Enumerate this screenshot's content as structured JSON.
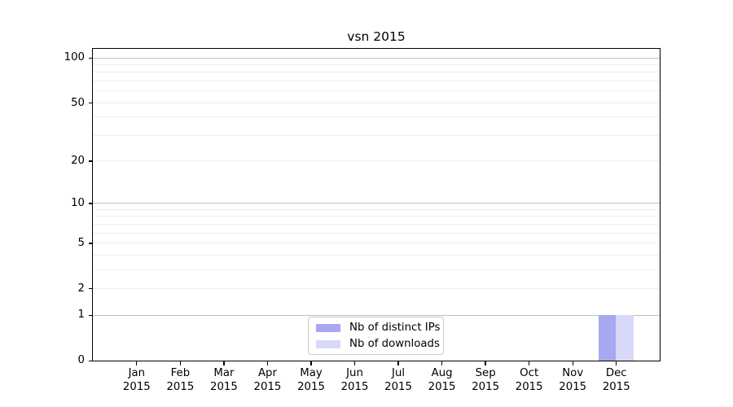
{
  "chart_data": {
    "type": "bar",
    "title": "vsn 2015",
    "categories": [
      "Jan 2015",
      "Feb 2015",
      "Mar 2015",
      "Apr 2015",
      "May 2015",
      "Jun 2015",
      "Jul 2015",
      "Aug 2015",
      "Sep 2015",
      "Oct 2015",
      "Nov 2015",
      "Dec 2015"
    ],
    "series": [
      {
        "name": "Nb of distinct IPs",
        "color": "#a8a8f0",
        "values": [
          0,
          0,
          0,
          0,
          0,
          0,
          0,
          0,
          0,
          0,
          0,
          1
        ]
      },
      {
        "name": "Nb of downloads",
        "color": "#d8d8f8",
        "values": [
          0,
          0,
          0,
          0,
          0,
          0,
          0,
          0,
          0,
          0,
          0,
          1
        ]
      }
    ],
    "xlabel": "",
    "ylabel": "",
    "yscale": "log10(value+1)",
    "yticks": [
      0,
      1,
      2,
      5,
      10,
      20,
      50,
      100
    ],
    "yticks_minor": [
      3,
      4,
      6,
      7,
      8,
      9,
      30,
      40,
      60,
      70,
      80,
      90
    ],
    "emphasized_gridlines": [
      1,
      10,
      100
    ],
    "ylim": [
      0,
      115
    ],
    "grid": "horizontal",
    "legend_position": "bottom-center",
    "colors": {
      "grid_minor": "#ededed",
      "grid_major": "#bfbfbf",
      "axis": "#000000",
      "background": "#ffffff"
    }
  }
}
